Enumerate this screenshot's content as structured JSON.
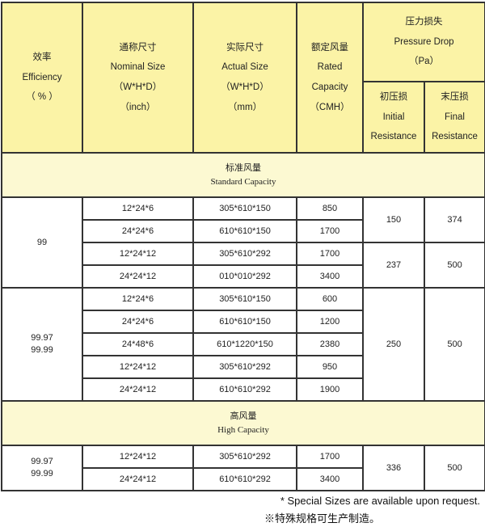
{
  "header": {
    "efficiency": [
      "效率",
      "Efficiency",
      "（ % ）"
    ],
    "nominal": [
      "通称尺寸",
      "Nominal Size",
      "（W*H*D）",
      "（inch）"
    ],
    "actual": [
      "实际尺寸",
      "Actual Size",
      "（W*H*D）",
      "（mm）"
    ],
    "rated": [
      "额定风量",
      "Rated",
      "Capacity",
      "（CMH）"
    ],
    "pressure": [
      "压力损失",
      "Pressure Drop",
      "（Pa）"
    ],
    "initial": [
      "初压损",
      "Initial",
      "Resistance"
    ],
    "final": [
      "末压损",
      "Final",
      "Resistance"
    ]
  },
  "sections": [
    {
      "title_cn": "标准风量",
      "title_en": "Standard Capacity",
      "groups": [
        {
          "efficiency": [
            "99"
          ],
          "rows": [
            {
              "nominal": "12*24*6",
              "actual": "305*610*150",
              "rated": "850"
            },
            {
              "nominal": "24*24*6",
              "actual": "610*610*150",
              "rated": "1700"
            },
            {
              "nominal": "12*24*12",
              "actual": "305*610*292",
              "rated": "1700"
            },
            {
              "nominal": "24*24*12",
              "actual": "010*010*292",
              "rated": "3400"
            }
          ],
          "pressure": [
            {
              "initial": "150",
              "final": "374",
              "span": 2
            },
            {
              "initial": "237",
              "final": "500",
              "span": 2
            }
          ]
        },
        {
          "efficiency": [
            "99.97",
            "99.99"
          ],
          "rows": [
            {
              "nominal": "12*24*6",
              "actual": "305*610*150",
              "rated": "600"
            },
            {
              "nominal": "24*24*6",
              "actual": "610*610*150",
              "rated": "1200"
            },
            {
              "nominal": "24*48*6",
              "actual": "610*1220*150",
              "rated": "2380"
            },
            {
              "nominal": "12*24*12",
              "actual": "305*610*292",
              "rated": "950"
            },
            {
              "nominal": "24*24*12",
              "actual": "610*610*292",
              "rated": "1900"
            }
          ],
          "pressure": [
            {
              "initial": "250",
              "final": "500",
              "span": 5
            }
          ]
        }
      ]
    },
    {
      "title_cn": "高风量",
      "title_en": "High Capacity",
      "groups": [
        {
          "efficiency": [
            "99.97",
            "99.99"
          ],
          "rows": [
            {
              "nominal": "12*24*12",
              "actual": "305*610*292",
              "rated": "1700"
            },
            {
              "nominal": "24*24*12",
              "actual": "610*610*292",
              "rated": "3400"
            }
          ],
          "pressure": [
            {
              "initial": "336",
              "final": "500",
              "span": 2
            }
          ]
        }
      ]
    }
  ],
  "notes": [
    "* Special Sizes are available upon request.",
    "※特殊规格可生产制造。"
  ]
}
